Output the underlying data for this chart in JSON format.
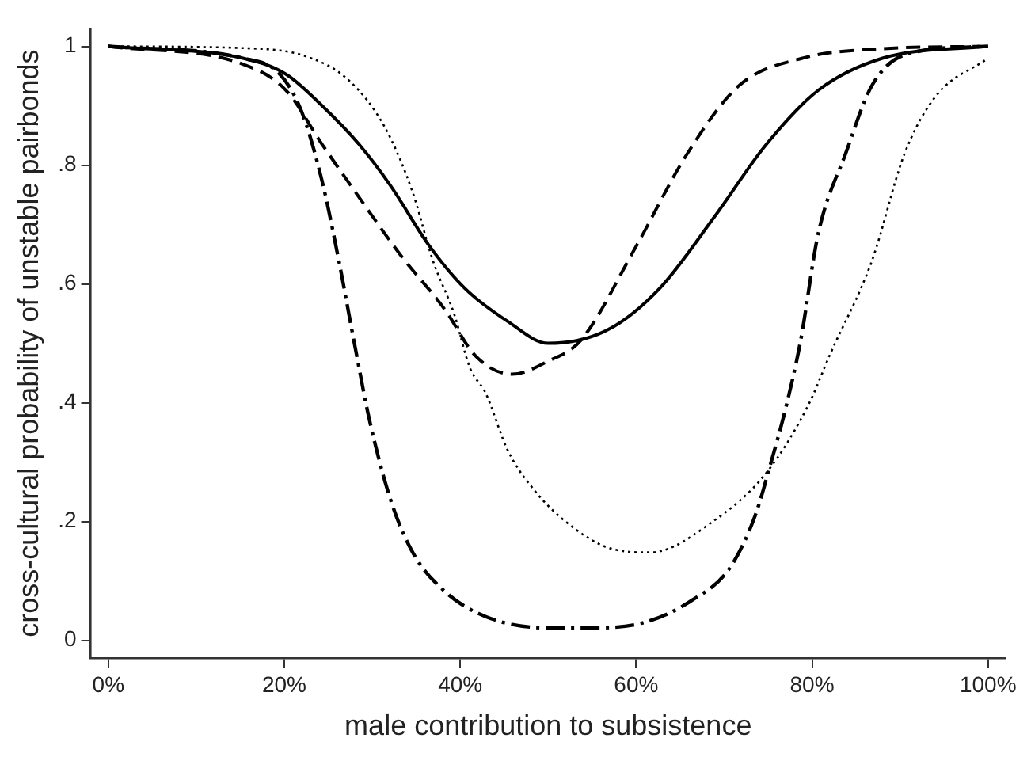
{
  "chart_data": {
    "type": "line",
    "xlabel": "male contribution to subsistence",
    "ylabel": "cross-cultural probability of unstable pairbonds",
    "xlim": [
      -2,
      102
    ],
    "ylim": [
      -0.03,
      1.03
    ],
    "xticks": [
      {
        "value": 0,
        "label": "0%"
      },
      {
        "value": 20,
        "label": "20%"
      },
      {
        "value": 40,
        "label": "40%"
      },
      {
        "value": 60,
        "label": "60%"
      },
      {
        "value": 80,
        "label": "80%"
      },
      {
        "value": 100,
        "label": "100%"
      }
    ],
    "yticks": [
      {
        "value": 0,
        "label": "0"
      },
      {
        "value": 0.2,
        "label": ".2"
      },
      {
        "value": 0.4,
        "label": ".4"
      },
      {
        "value": 0.6,
        "label": ".6"
      },
      {
        "value": 0.8,
        "label": ".8"
      },
      {
        "value": 1,
        "label": "1"
      }
    ],
    "grid": false,
    "legend": false,
    "marker": "none",
    "series": [
      {
        "color": "#000000",
        "line_style": "solid",
        "x": [
          0,
          15.3,
          20.2,
          24.3,
          28.5,
          32.1,
          36.4,
          40.5,
          45.4,
          50,
          56.8,
          62.7,
          68.8,
          74.8,
          80.7,
          88,
          100
        ],
        "values": [
          1,
          0.98,
          0.953,
          0.9,
          0.835,
          0.765,
          0.666,
          0.593,
          0.537,
          0.5,
          0.523,
          0.593,
          0.711,
          0.835,
          0.926,
          0.98,
          1
        ]
      },
      {
        "color": "#000000",
        "line_style": "dashed",
        "x": [
          0,
          15.3,
          20.2,
          24.3,
          28.5,
          33.3,
          38.2,
          41.8,
          45.9,
          50,
          53.7,
          59.8,
          65.8,
          71.7,
          78.9,
          88,
          100
        ],
        "values": [
          1,
          0.97,
          0.926,
          0.835,
          0.746,
          0.647,
          0.558,
          0.478,
          0.448,
          0.47,
          0.505,
          0.658,
          0.819,
          0.934,
          0.98,
          0.996,
          1
        ]
      },
      {
        "color": "#000000",
        "line_style": "dotted",
        "x": [
          0,
          15.3,
          22.5,
          27.4,
          31.5,
          34.6,
          36.9,
          39.3,
          41.1,
          42.9,
          45.4,
          48.3,
          51.9,
          56.8,
          61.6,
          68.8,
          74.8,
          79.6,
          82,
          86.8,
          90.5,
          94,
          100
        ],
        "values": [
          1,
          0.997,
          0.983,
          0.942,
          0.862,
          0.754,
          0.639,
          0.55,
          0.459,
          0.416,
          0.32,
          0.255,
          0.201,
          0.156,
          0.148,
          0.201,
          0.282,
          0.397,
          0.48,
          0.639,
          0.819,
          0.915,
          0.98
        ]
      },
      {
        "color": "#000000",
        "line_style": "dashdot",
        "x": [
          0,
          15.3,
          19.5,
          22,
          24.3,
          26.1,
          28.1,
          29.7,
          32.1,
          34.6,
          38.2,
          42.9,
          50,
          55,
          60.9,
          66.3,
          70.6,
          73.5,
          75.3,
          77.1,
          78.7,
          80.7,
          83.8,
          86.8,
          91,
          100
        ],
        "values": [
          1,
          0.98,
          0.953,
          0.889,
          0.773,
          0.647,
          0.49,
          0.37,
          0.236,
          0.148,
          0.083,
          0.04,
          0.021,
          0.021,
          0.03,
          0.067,
          0.121,
          0.209,
          0.298,
          0.397,
          0.505,
          0.685,
          0.819,
          0.934,
          0.988,
          1
        ]
      }
    ]
  }
}
